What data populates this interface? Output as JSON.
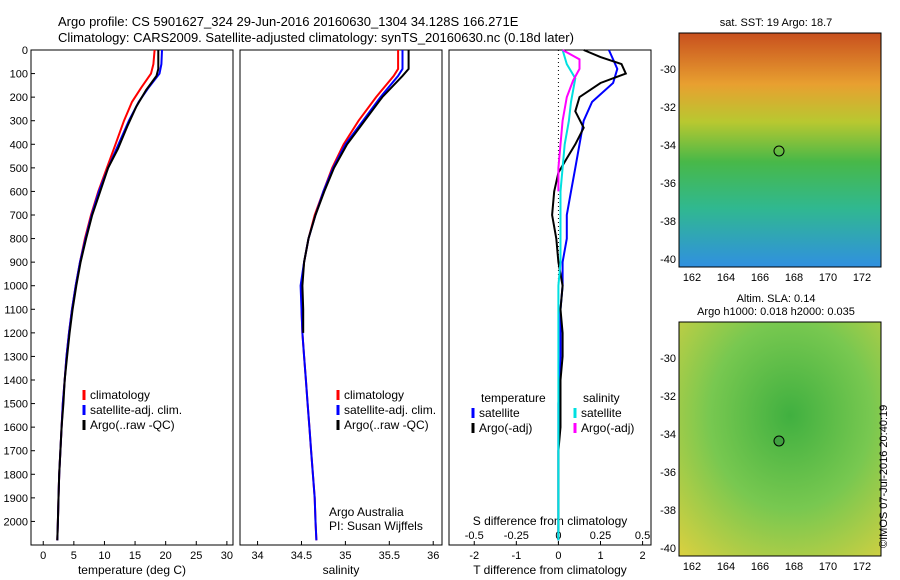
{
  "header": {
    "line1": "Argo profile: CS 5901627_324 29-Jun-2016 20160630_1304 34.128S 166.271E",
    "line2": "Climatology: CARS2009. Satellite-adjusted climatology: synTS_20160630.nc (0.18d later)"
  },
  "stamp": "©IMOS 07-Jul-2016 20:40:19",
  "colors": {
    "clim": "#ff0000",
    "sat": "#0000ff",
    "argo": "#000000",
    "sal_sat": "#00e0e0",
    "sal_argo": "#ff00ff"
  },
  "chart_data": [
    {
      "type": "line",
      "xlabel": "temperature (deg C)",
      "ylabel": "",
      "xlim": [
        -2,
        31
      ],
      "ylim": [
        2100,
        0
      ],
      "xticks": [
        0,
        5,
        10,
        15,
        20,
        25,
        30
      ],
      "yticks": [
        0,
        100,
        200,
        300,
        400,
        500,
        600,
        700,
        800,
        900,
        1000,
        1100,
        1200,
        1300,
        1400,
        1500,
        1600,
        1700,
        1800,
        1900,
        2000
      ],
      "legend": [
        "climatology",
        "satellite-adj. clim.",
        "Argo(..raw -QC)"
      ],
      "series": [
        {
          "name": "climatology",
          "color": "clim",
          "points": [
            [
              18.2,
              0
            ],
            [
              18.0,
              60
            ],
            [
              17.6,
              100
            ],
            [
              16.0,
              160
            ],
            [
              14.5,
              220
            ],
            [
              13.2,
              300
            ],
            [
              11.8,
              400
            ],
            [
              10.4,
              500
            ],
            [
              9.0,
              600
            ],
            [
              7.8,
              700
            ],
            [
              6.8,
              800
            ],
            [
              6.0,
              900
            ],
            [
              5.3,
              1000
            ],
            [
              4.7,
              1100
            ],
            [
              4.2,
              1200
            ],
            [
              3.8,
              1300
            ],
            [
              3.5,
              1400
            ],
            [
              3.2,
              1500
            ],
            [
              3.0,
              1600
            ],
            [
              2.8,
              1700
            ],
            [
              2.6,
              1800
            ],
            [
              2.5,
              1900
            ],
            [
              2.4,
              2000
            ],
            [
              2.3,
              2080
            ]
          ]
        },
        {
          "name": "satellite-adj. clim.",
          "color": "sat",
          "points": [
            [
              19.4,
              0
            ],
            [
              19.3,
              60
            ],
            [
              19.0,
              100
            ],
            [
              17.2,
              160
            ],
            [
              15.6,
              220
            ],
            [
              14.0,
              300
            ],
            [
              12.3,
              400
            ],
            [
              10.6,
              500
            ],
            [
              9.1,
              600
            ],
            [
              7.9,
              700
            ],
            [
              6.9,
              800
            ],
            [
              6.0,
              900
            ],
            [
              5.3,
              1000
            ],
            [
              4.7,
              1100
            ],
            [
              4.2,
              1200
            ],
            [
              3.8,
              1300
            ],
            [
              3.5,
              1400
            ],
            [
              3.2,
              1500
            ],
            [
              3.0,
              1600
            ],
            [
              2.8,
              1700
            ],
            [
              2.6,
              1800
            ],
            [
              2.5,
              1900
            ],
            [
              2.4,
              2000
            ],
            [
              2.3,
              2080
            ]
          ]
        },
        {
          "name": "Argo(..raw -QC)",
          "color": "argo",
          "points": [
            [
              18.8,
              0
            ],
            [
              18.8,
              80
            ],
            [
              18.5,
              110
            ],
            [
              16.8,
              170
            ],
            [
              15.2,
              240
            ],
            [
              13.8,
              320
            ],
            [
              12.2,
              420
            ],
            [
              10.6,
              500
            ],
            [
              9.3,
              600
            ],
            [
              8.0,
              700
            ],
            [
              7.0,
              800
            ],
            [
              6.1,
              900
            ],
            [
              5.4,
              1000
            ],
            [
              4.8,
              1100
            ],
            [
              4.3,
              1200
            ],
            [
              3.9,
              1300
            ],
            [
              3.5,
              1400
            ],
            [
              3.3,
              1500
            ],
            [
              3.0,
              1600
            ],
            [
              2.8,
              1700
            ],
            [
              2.6,
              1800
            ],
            [
              2.5,
              1900
            ],
            [
              2.4,
              2000
            ],
            [
              2.3,
              2080
            ]
          ]
        }
      ]
    },
    {
      "type": "line",
      "xlabel": "salinity",
      "xlim": [
        33.8,
        36.1
      ],
      "ylim": [
        2100,
        0
      ],
      "xticks": [
        34,
        34.5,
        35,
        35.5,
        36
      ],
      "xtick_labels": [
        "34",
        "34.5",
        "35",
        "35.5",
        "36"
      ],
      "legend": [
        "climatology",
        "satellite-adj. clim.",
        "Argo(..raw -QC)"
      ],
      "annotation": [
        "Argo Australia",
        "PI: Susan Wijffels"
      ],
      "series": [
        {
          "name": "climatology",
          "color": "clim",
          "points": [
            [
              35.6,
              0
            ],
            [
              35.6,
              80
            ],
            [
              35.55,
              110
            ],
            [
              35.35,
              200
            ],
            [
              35.15,
              300
            ],
            [
              34.98,
              400
            ],
            [
              34.85,
              500
            ],
            [
              34.75,
              600
            ],
            [
              34.65,
              700
            ],
            [
              34.58,
              800
            ],
            [
              34.53,
              900
            ],
            [
              34.5,
              1000
            ],
            [
              34.5,
              1100
            ],
            [
              34.51,
              1200
            ],
            [
              34.53,
              1300
            ],
            [
              34.55,
              1400
            ],
            [
              34.57,
              1500
            ],
            [
              34.59,
              1600
            ],
            [
              34.61,
              1700
            ],
            [
              34.63,
              1800
            ],
            [
              34.65,
              1900
            ],
            [
              34.66,
              2000
            ],
            [
              34.67,
              2080
            ]
          ]
        },
        {
          "name": "satellite-adj. clim.",
          "color": "sat",
          "points": [
            [
              35.65,
              0
            ],
            [
              35.65,
              80
            ],
            [
              35.6,
              110
            ],
            [
              35.4,
              200
            ],
            [
              35.2,
              300
            ],
            [
              35.0,
              400
            ],
            [
              34.86,
              500
            ],
            [
              34.75,
              600
            ],
            [
              34.66,
              700
            ],
            [
              34.58,
              800
            ],
            [
              34.53,
              900
            ],
            [
              34.49,
              1000
            ],
            [
              34.5,
              1100
            ],
            [
              34.51,
              1200
            ],
            [
              34.53,
              1300
            ],
            [
              34.55,
              1400
            ],
            [
              34.57,
              1500
            ],
            [
              34.59,
              1600
            ],
            [
              34.61,
              1700
            ],
            [
              34.63,
              1800
            ],
            [
              34.65,
              1900
            ],
            [
              34.66,
              2000
            ],
            [
              34.67,
              2080
            ]
          ]
        },
        {
          "name": "Argo(..raw -QC)",
          "color": "argo",
          "points": [
            [
              35.72,
              0
            ],
            [
              35.72,
              80
            ],
            [
              35.65,
              110
            ],
            [
              35.42,
              200
            ],
            [
              35.22,
              300
            ],
            [
              35.02,
              400
            ],
            [
              34.87,
              500
            ],
            [
              34.76,
              600
            ],
            [
              34.66,
              700
            ],
            [
              34.58,
              800
            ],
            [
              34.53,
              900
            ],
            [
              34.51,
              1000
            ],
            [
              34.52,
              1100
            ],
            [
              34.52,
              1200
            ]
          ]
        }
      ]
    },
    {
      "type": "line",
      "xlabel": "T difference from climatology",
      "xlabel_top": "S difference from climatology",
      "xlim": [
        -2.6,
        2.2
      ],
      "ylim": [
        2100,
        0
      ],
      "xticks": [
        -2,
        -1,
        0,
        1,
        2
      ],
      "xticks_S": [
        "-0.5",
        "-0.25",
        "0",
        "0.25",
        "0.5"
      ],
      "legend_temperature": [
        "temperature",
        "satellite",
        "Argo(-adj)"
      ],
      "legend_salinity": [
        "salinity",
        "satellite",
        "Argo(-adj)"
      ],
      "series": [
        {
          "name": "temperature satellite",
          "color": "sat",
          "points": [
            [
              1.2,
              0
            ],
            [
              1.3,
              40
            ],
            [
              1.4,
              80
            ],
            [
              1.3,
              140
            ],
            [
              0.8,
              220
            ],
            [
              0.6,
              300
            ],
            [
              0.5,
              400
            ],
            [
              0.4,
              500
            ],
            [
              0.3,
              600
            ],
            [
              0.2,
              700
            ],
            [
              0.2,
              800
            ],
            [
              0.1,
              900
            ],
            [
              0.1,
              1000
            ],
            [
              0.05,
              1100
            ],
            [
              0.05,
              1300
            ],
            [
              0,
              1500
            ],
            [
              0,
              1700
            ],
            [
              0,
              2080
            ]
          ]
        },
        {
          "name": "temperature Argo(-adj)",
          "color": "argo",
          "points": [
            [
              0.6,
              0
            ],
            [
              1.0,
              30
            ],
            [
              1.5,
              60
            ],
            [
              1.6,
              100
            ],
            [
              1.0,
              140
            ],
            [
              0.5,
              200
            ],
            [
              0.4,
              260
            ],
            [
              0.6,
              330
            ],
            [
              0.4,
              400
            ],
            [
              0.2,
              460
            ],
            [
              0,
              520
            ],
            [
              -0.1,
              600
            ],
            [
              -0.15,
              700
            ],
            [
              -0.05,
              800
            ],
            [
              0,
              900
            ],
            [
              0.1,
              1000
            ],
            [
              0.05,
              1100
            ],
            [
              0.1,
              1200
            ],
            [
              0.1,
              1300
            ],
            [
              0.05,
              1400
            ],
            [
              0.05,
              1500
            ],
            [
              0.05,
              1600
            ],
            [
              0,
              1700
            ],
            [
              0,
              1800
            ],
            [
              0,
              1900
            ],
            [
              0,
              2000
            ],
            [
              0,
              2080
            ]
          ]
        },
        {
          "name": "salinity satellite",
          "color": "sal_sat",
          "points": [
            [
              0.1,
              0
            ],
            [
              0.2,
              60
            ],
            [
              0.4,
              120
            ],
            [
              0.3,
              220
            ],
            [
              0.25,
              300
            ],
            [
              0.15,
              400
            ],
            [
              0.1,
              500
            ],
            [
              0.05,
              600
            ],
            [
              0.05,
              800
            ],
            [
              0.05,
              900
            ],
            [
              0.0,
              1000
            ],
            [
              0.0,
              1200
            ],
            [
              0.0,
              1400
            ],
            [
              0.0,
              1600
            ],
            [
              0.0,
              1800
            ],
            [
              0.0,
              2080
            ]
          ]
        },
        {
          "name": "salinity Argo(-adj)",
          "color": "sal_argo",
          "points": [
            [
              0.1,
              0
            ],
            [
              0.5,
              40
            ],
            [
              0.5,
              80
            ],
            [
              0.35,
              130
            ],
            [
              0.2,
              200
            ],
            [
              0.1,
              300
            ],
            [
              0.05,
              400
            ],
            [
              0.0,
              500
            ],
            [
              0.0,
              600
            ]
          ]
        }
      ]
    }
  ],
  "maps": {
    "sst": {
      "title": "sat. SST: 19 Argo: 18.7",
      "xticks": [
        "162",
        "164",
        "166",
        "168",
        "170",
        "172"
      ],
      "yticks": [
        "-30",
        "-32",
        "-34",
        "-36",
        "-38",
        "-40"
      ]
    },
    "sla": {
      "title1": "Altim. SLA: 0.14",
      "title2": "Argo h1000: 0.018 h2000: 0.035",
      "xticks": [
        "162",
        "164",
        "166",
        "168",
        "170",
        "172"
      ],
      "yticks": [
        "-30",
        "-32",
        "-34",
        "-36",
        "-38",
        "-40"
      ]
    }
  }
}
